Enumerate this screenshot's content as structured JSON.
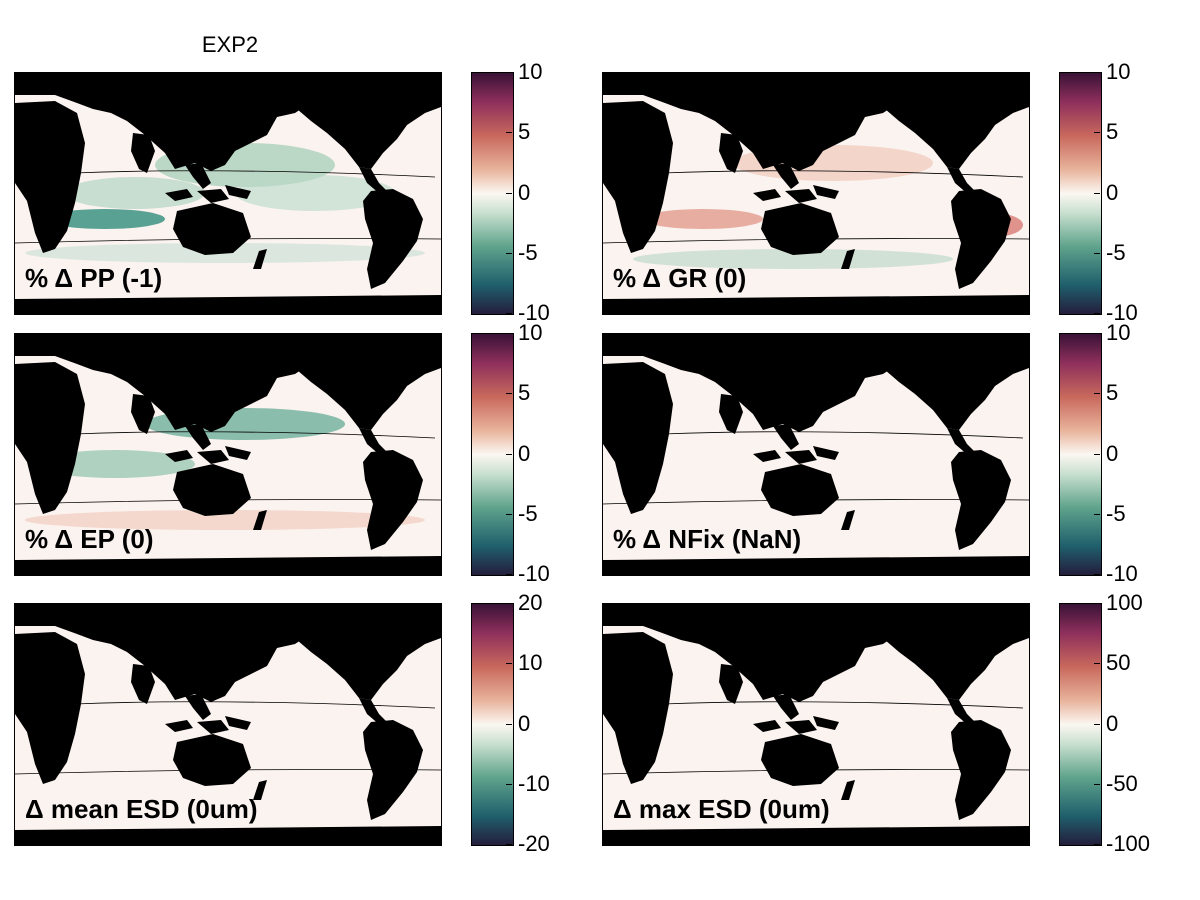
{
  "figure": {
    "title": "EXP2"
  },
  "colormap": {
    "name": "diverging-teal-white-purple",
    "stops": [
      "#241d3c",
      "#1f5f6c",
      "#5fa38c",
      "#c9e0cf",
      "#fbf7f2",
      "#e8b39b",
      "#c8685d",
      "#8e2f5c",
      "#3a1236"
    ]
  },
  "land_color": "#000000",
  "panels": [
    {
      "id": "pp",
      "label": "% Δ PP (-1)",
      "cbar": {
        "min": -10,
        "max": 10,
        "ticks": [
          "10",
          "5",
          "0",
          "-5",
          "-10"
        ]
      },
      "field": "green"
    },
    {
      "id": "gr",
      "label": "% Δ GR (0)",
      "cbar": {
        "min": -10,
        "max": 10,
        "ticks": [
          "10",
          "5",
          "0",
          "-5",
          "-10"
        ]
      },
      "field": "red"
    },
    {
      "id": "ep",
      "label": "% Δ EP (0)",
      "cbar": {
        "min": -10,
        "max": 10,
        "ticks": [
          "10",
          "5",
          "0",
          "-5",
          "-10"
        ]
      },
      "field": "green-strong"
    },
    {
      "id": "nfix",
      "label": "% Δ NFix (NaN)",
      "cbar": {
        "min": -10,
        "max": 10,
        "ticks": [
          "10",
          "5",
          "0",
          "-5",
          "-10"
        ]
      },
      "field": "flat"
    },
    {
      "id": "mean-esd",
      "label": "Δ mean ESD (0um)",
      "cbar": {
        "min": -20,
        "max": 20,
        "ticks": [
          "20",
          "10",
          "0",
          "-10",
          "-20"
        ]
      },
      "field": "flat"
    },
    {
      "id": "max-esd",
      "label": "Δ max ESD (0um)",
      "cbar": {
        "min": -100,
        "max": 100,
        "ticks": [
          "100",
          "50",
          "0",
          "-50",
          "-100"
        ]
      },
      "field": "flat"
    }
  ]
}
